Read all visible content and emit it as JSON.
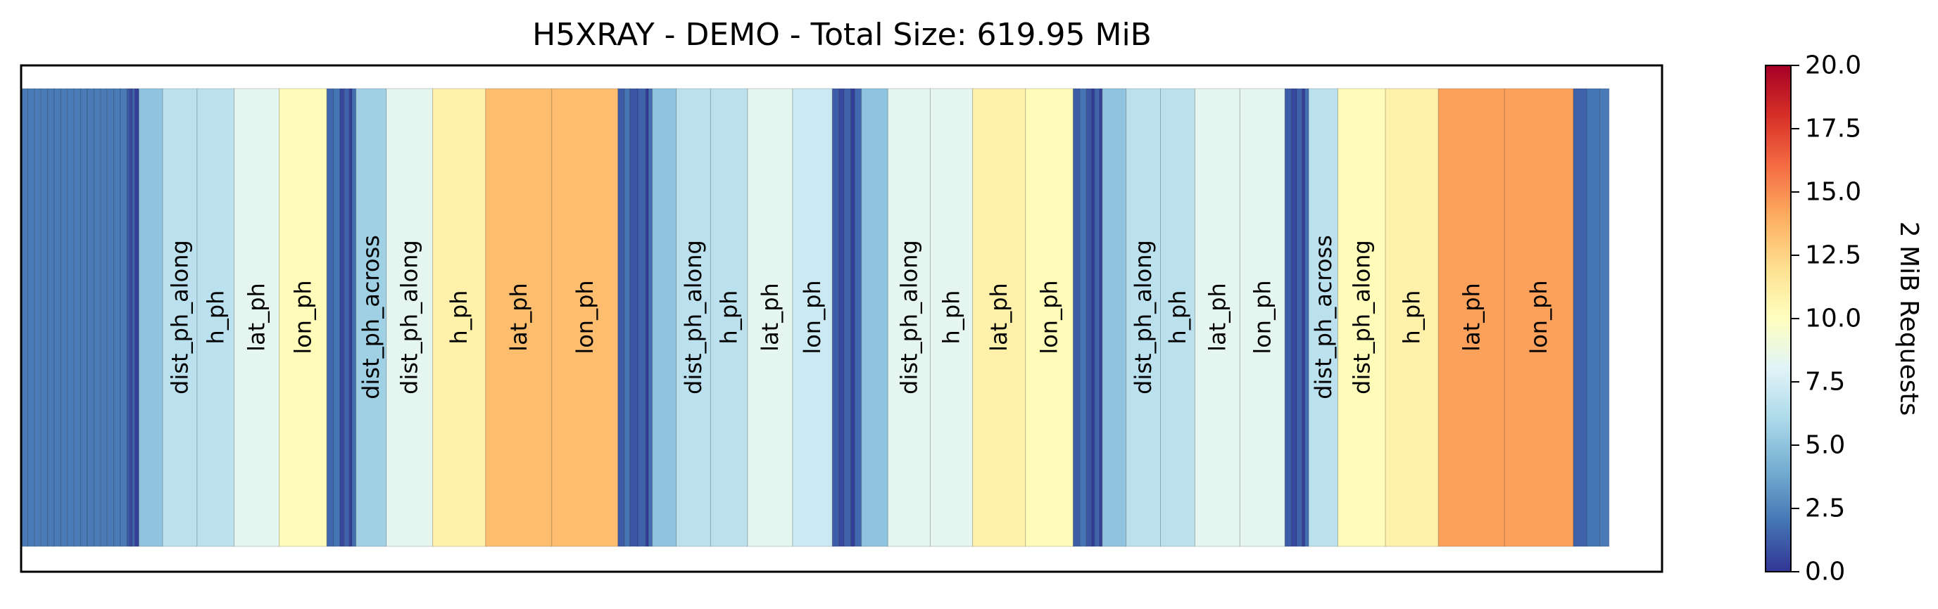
{
  "chart_data": {
    "type": "heatmap",
    "title": "H5XRAY - DEMO - Total Size: 619.95 MiB",
    "colorbar": {
      "label": "2 MiB Requests",
      "ticks": [
        "0.0",
        "2.5",
        "5.0",
        "7.5",
        "10.0",
        "12.5",
        "15.0",
        "17.5",
        "20.0"
      ],
      "range": [
        0,
        20
      ],
      "colormap": "RdYlBu_r"
    },
    "x_range": [
      0,
      620
    ],
    "segments": [
      {
        "start": 0.0,
        "end": 2.5,
        "value": 2.2,
        "label": ""
      },
      {
        "start": 2.5,
        "end": 5.0,
        "value": 2.2,
        "label": ""
      },
      {
        "start": 5.0,
        "end": 7.5,
        "value": 2.2,
        "label": ""
      },
      {
        "start": 7.5,
        "end": 10.0,
        "value": 2.2,
        "label": ""
      },
      {
        "start": 10.0,
        "end": 12.5,
        "value": 2.2,
        "label": ""
      },
      {
        "start": 12.5,
        "end": 15.0,
        "value": 2.2,
        "label": ""
      },
      {
        "start": 15.0,
        "end": 17.5,
        "value": 2.2,
        "label": ""
      },
      {
        "start": 17.5,
        "end": 20.0,
        "value": 2.2,
        "label": ""
      },
      {
        "start": 20.0,
        "end": 22.5,
        "value": 2.2,
        "label": ""
      },
      {
        "start": 22.5,
        "end": 25.0,
        "value": 2.2,
        "label": ""
      },
      {
        "start": 25.0,
        "end": 27.5,
        "value": 2.2,
        "label": ""
      },
      {
        "start": 27.5,
        "end": 30.0,
        "value": 2.2,
        "label": ""
      },
      {
        "start": 30.0,
        "end": 32.5,
        "value": 2.2,
        "label": ""
      },
      {
        "start": 32.5,
        "end": 35.0,
        "value": 2.2,
        "label": ""
      },
      {
        "start": 35.0,
        "end": 37.5,
        "value": 2.2,
        "label": ""
      },
      {
        "start": 37.5,
        "end": 40.0,
        "value": 2.2,
        "label": ""
      },
      {
        "start": 40.0,
        "end": 41.0,
        "value": 1.2,
        "label": ""
      },
      {
        "start": 41.0,
        "end": 42.0,
        "value": 0.6,
        "label": ""
      },
      {
        "start": 42.0,
        "end": 43.0,
        "value": 1.5,
        "label": ""
      },
      {
        "start": 43.0,
        "end": 44.5,
        "value": 0.3,
        "label": ""
      },
      {
        "start": 44.5,
        "end": 53.5,
        "value": 5.0,
        "label": ""
      },
      {
        "start": 53.5,
        "end": 66.5,
        "value": 6.6,
        "label": "dist_ph_along"
      },
      {
        "start": 66.5,
        "end": 80.5,
        "value": 6.6,
        "label": "h_ph"
      },
      {
        "start": 80.5,
        "end": 97.5,
        "value": 8.3,
        "label": "lat_ph"
      },
      {
        "start": 97.5,
        "end": 115.5,
        "value": 10.2,
        "label": "lon_ph"
      },
      {
        "start": 115.5,
        "end": 118.0,
        "value": 1.6,
        "label": ""
      },
      {
        "start": 118.0,
        "end": 120.5,
        "value": 2.0,
        "label": ""
      },
      {
        "start": 120.5,
        "end": 122.0,
        "value": 0.5,
        "label": ""
      },
      {
        "start": 122.0,
        "end": 124.0,
        "value": 1.4,
        "label": ""
      },
      {
        "start": 124.0,
        "end": 125.0,
        "value": 0.2,
        "label": ""
      },
      {
        "start": 125.0,
        "end": 126.5,
        "value": 1.8,
        "label": ""
      },
      {
        "start": 126.5,
        "end": 138.0,
        "value": 5.6,
        "label": "dist_ph_across"
      },
      {
        "start": 138.0,
        "end": 155.5,
        "value": 8.3,
        "label": "dist_ph_along"
      },
      {
        "start": 155.5,
        "end": 175.5,
        "value": 10.9,
        "label": "h_ph"
      },
      {
        "start": 175.5,
        "end": 200.5,
        "value": 13.4,
        "label": "lat_ph"
      },
      {
        "start": 200.5,
        "end": 225.5,
        "value": 13.4,
        "label": "lon_ph"
      },
      {
        "start": 225.5,
        "end": 228.0,
        "value": 1.2,
        "label": ""
      },
      {
        "start": 228.0,
        "end": 230.0,
        "value": 2.0,
        "label": ""
      },
      {
        "start": 230.0,
        "end": 233.0,
        "value": 1.0,
        "label": ""
      },
      {
        "start": 233.0,
        "end": 236.0,
        "value": 1.4,
        "label": ""
      },
      {
        "start": 236.0,
        "end": 237.0,
        "value": 0.2,
        "label": ""
      },
      {
        "start": 237.0,
        "end": 238.5,
        "value": 1.8,
        "label": ""
      },
      {
        "start": 238.5,
        "end": 247.5,
        "value": 5.0,
        "label": ""
      },
      {
        "start": 247.5,
        "end": 260.5,
        "value": 6.6,
        "label": "dist_ph_along"
      },
      {
        "start": 260.5,
        "end": 274.5,
        "value": 6.6,
        "label": "h_ph"
      },
      {
        "start": 274.5,
        "end": 291.5,
        "value": 8.3,
        "label": "lat_ph"
      },
      {
        "start": 291.5,
        "end": 306.5,
        "value": 7.2,
        "label": "lon_ph"
      },
      {
        "start": 306.5,
        "end": 309.0,
        "value": 1.2,
        "label": ""
      },
      {
        "start": 309.0,
        "end": 311.0,
        "value": 0.6,
        "label": ""
      },
      {
        "start": 311.0,
        "end": 313.5,
        "value": 1.4,
        "label": ""
      },
      {
        "start": 313.5,
        "end": 315.0,
        "value": 0.3,
        "label": ""
      },
      {
        "start": 315.0,
        "end": 317.5,
        "value": 1.6,
        "label": ""
      },
      {
        "start": 317.5,
        "end": 327.5,
        "value": 5.0,
        "label": ""
      },
      {
        "start": 327.5,
        "end": 343.5,
        "value": 8.3,
        "label": "dist_ph_along"
      },
      {
        "start": 343.5,
        "end": 359.5,
        "value": 8.3,
        "label": "h_ph"
      },
      {
        "start": 359.5,
        "end": 379.5,
        "value": 10.9,
        "label": "lat_ph"
      },
      {
        "start": 379.5,
        "end": 397.5,
        "value": 10.2,
        "label": "lon_ph"
      },
      {
        "start": 397.5,
        "end": 400.0,
        "value": 1.2,
        "label": ""
      },
      {
        "start": 400.0,
        "end": 402.5,
        "value": 2.0,
        "label": ""
      },
      {
        "start": 402.5,
        "end": 404.5,
        "value": 1.0,
        "label": ""
      },
      {
        "start": 404.5,
        "end": 405.5,
        "value": 0.2,
        "label": ""
      },
      {
        "start": 405.5,
        "end": 407.5,
        "value": 1.4,
        "label": ""
      },
      {
        "start": 407.5,
        "end": 408.5,
        "value": 0.3,
        "label": ""
      },
      {
        "start": 408.5,
        "end": 417.5,
        "value": 5.0,
        "label": ""
      },
      {
        "start": 417.5,
        "end": 430.5,
        "value": 6.6,
        "label": "dist_ph_along"
      },
      {
        "start": 430.5,
        "end": 443.5,
        "value": 6.6,
        "label": "h_ph"
      },
      {
        "start": 443.5,
        "end": 460.5,
        "value": 8.3,
        "label": "lat_ph"
      },
      {
        "start": 460.5,
        "end": 477.5,
        "value": 8.3,
        "label": "lon_ph"
      },
      {
        "start": 477.5,
        "end": 480.0,
        "value": 1.2,
        "label": ""
      },
      {
        "start": 480.0,
        "end": 482.0,
        "value": 0.6,
        "label": ""
      },
      {
        "start": 482.0,
        "end": 484.0,
        "value": 1.4,
        "label": ""
      },
      {
        "start": 484.0,
        "end": 485.0,
        "value": 0.3,
        "label": ""
      },
      {
        "start": 485.0,
        "end": 486.5,
        "value": 1.8,
        "label": ""
      },
      {
        "start": 486.5,
        "end": 497.5,
        "value": 6.6,
        "label": "dist_ph_across"
      },
      {
        "start": 497.5,
        "end": 515.5,
        "value": 10.2,
        "label": "dist_ph_along"
      },
      {
        "start": 515.5,
        "end": 535.5,
        "value": 10.9,
        "label": "h_ph"
      },
      {
        "start": 535.5,
        "end": 560.5,
        "value": 14.4,
        "label": "lat_ph"
      },
      {
        "start": 560.5,
        "end": 586.5,
        "value": 14.4,
        "label": "lon_ph"
      },
      {
        "start": 586.5,
        "end": 591.5,
        "value": 1.4,
        "label": ""
      },
      {
        "start": 591.5,
        "end": 596.5,
        "value": 2.0,
        "label": ""
      },
      {
        "start": 596.5,
        "end": 600.0,
        "value": 2.2,
        "label": ""
      }
    ]
  }
}
